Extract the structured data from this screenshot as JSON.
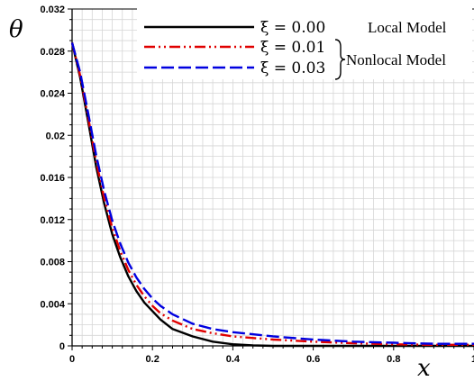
{
  "chart_data": {
    "type": "line",
    "xlabel": "x",
    "ylabel": "θ",
    "xlim": [
      0,
      1
    ],
    "ylim": [
      0,
      0.032
    ],
    "x_ticks": [
      "0",
      "0.2",
      "0.4",
      "0.6",
      "0.8",
      "1"
    ],
    "y_ticks": [
      "0",
      "0.004",
      "0.008",
      "0.012",
      "0.016",
      "0.02",
      "0.024",
      "0.028",
      "0.032"
    ],
    "grid": true,
    "legend_position": "top-right",
    "series": [
      {
        "name": "ξ = 0.00",
        "color": "#000000",
        "style": "solid",
        "x": [
          0,
          0.02,
          0.04,
          0.06,
          0.08,
          0.1,
          0.12,
          0.14,
          0.16,
          0.18,
          0.2,
          0.22,
          0.25,
          0.3,
          0.35,
          0.4,
          0.45,
          0.5,
          0.6,
          0.8,
          1.0
        ],
        "y": [
          0.0288,
          0.0255,
          0.0213,
          0.017,
          0.0135,
          0.0106,
          0.0084,
          0.0066,
          0.0052,
          0.0041,
          0.0033,
          0.0025,
          0.0016,
          0.0009,
          0.0004,
          0.00015,
          5e-05,
          0.0,
          0.0,
          0.0,
          0.0
        ]
      },
      {
        "name": "ξ = 0.01",
        "color": "#e00000",
        "style": "dash-dot-dot",
        "x": [
          0,
          0.02,
          0.04,
          0.06,
          0.08,
          0.1,
          0.12,
          0.14,
          0.16,
          0.18,
          0.2,
          0.22,
          0.25,
          0.3,
          0.35,
          0.4,
          0.5,
          0.6,
          0.7,
          0.8,
          0.9,
          1.0
        ],
        "y": [
          0.0288,
          0.0257,
          0.0217,
          0.0175,
          0.014,
          0.0112,
          0.009,
          0.0072,
          0.0058,
          0.0047,
          0.0038,
          0.0031,
          0.0024,
          0.0016,
          0.0012,
          0.0009,
          0.0006,
          0.0004,
          0.00025,
          0.00015,
          0.0001,
          0.0001
        ]
      },
      {
        "name": "ξ = 0.03",
        "color": "#0000e0",
        "style": "dashed",
        "x": [
          0,
          0.02,
          0.04,
          0.06,
          0.08,
          0.1,
          0.12,
          0.14,
          0.16,
          0.18,
          0.2,
          0.22,
          0.25,
          0.3,
          0.35,
          0.4,
          0.5,
          0.6,
          0.7,
          0.8,
          0.9,
          1.0
        ],
        "y": [
          0.0288,
          0.026,
          0.0221,
          0.0181,
          0.0147,
          0.0119,
          0.0097,
          0.0079,
          0.0065,
          0.0054,
          0.0045,
          0.0038,
          0.003,
          0.0021,
          0.0016,
          0.0013,
          0.0009,
          0.0006,
          0.0004,
          0.0003,
          0.0002,
          0.0002
        ]
      }
    ],
    "legend": {
      "local_label": "Local Model",
      "nonlocal_label": "Nonlocal Model"
    }
  }
}
